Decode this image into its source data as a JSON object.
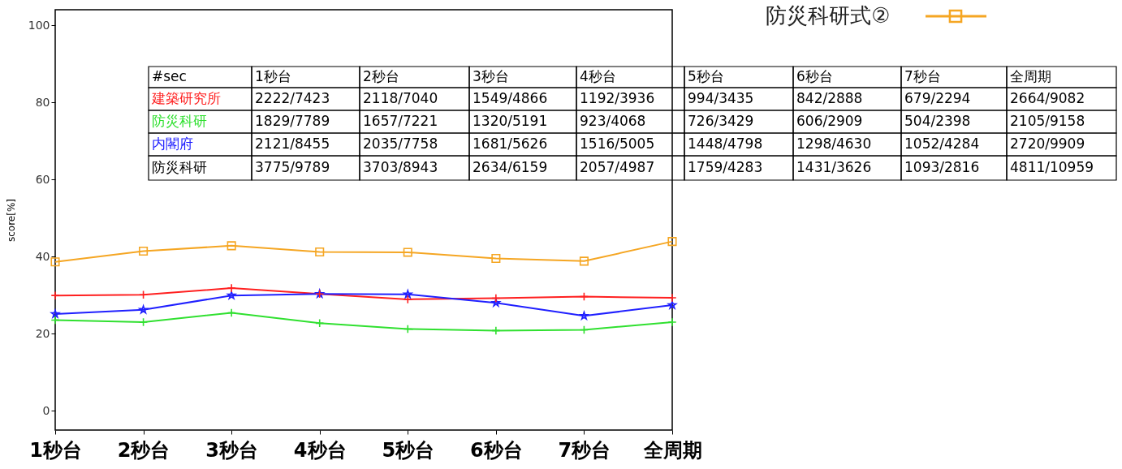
{
  "chart_data": {
    "type": "line",
    "ylabel": "score[%]",
    "categories": [
      "1秒台",
      "2秒台",
      "3秒台",
      "4秒台",
      "5秒台",
      "6秒台",
      "7秒台",
      "全周期"
    ],
    "ylim": [
      -5,
      104
    ],
    "yticks": [
      0,
      20,
      40,
      60,
      80,
      100
    ],
    "grid": false,
    "legend": "top right",
    "line_style": "solid",
    "annotations": [
      "#sec",
      "防災科研",
      "2222/7423",
      "2118/7040",
      "1549/4866",
      "1192/3936",
      "994/3435",
      "842/2888",
      "679/2294",
      "2664/9082",
      "1829/7789",
      "1657/7221",
      "1320/5191",
      "923/4068",
      "726/3429",
      "606/2909",
      "504/2398",
      "2105/9158",
      "2121/8455",
      "2035/7758",
      "1681/5626",
      "1516/5005",
      "1448/4798",
      "1298/4630",
      "1052/4284",
      "2720/9909",
      "3775/9789",
      "3703/8943",
      "2634/6159",
      "2057/4987",
      "1759/4283",
      "1431/3626",
      "1093/2816",
      "4811/10959"
    ],
    "series": [
      {
        "name": "建築研究所",
        "color": "#ff2020",
        "marker": "cross",
        "values": [
          29.9,
          30.1,
          31.8,
          30.3,
          28.9,
          29.2,
          29.6,
          29.3
        ]
      },
      {
        "name": "防災科研",
        "color": "#30e030",
        "marker": "cross",
        "values": [
          23.5,
          23.0,
          25.4,
          22.7,
          21.2,
          20.8,
          21.0,
          23.0
        ]
      },
      {
        "name": "内閣府",
        "color": "#2020ff",
        "marker": "star",
        "values": [
          25.1,
          26.2,
          29.9,
          30.3,
          30.2,
          28.0,
          24.6,
          27.4
        ]
      },
      {
        "name": "防災科研式②",
        "color": "#f5a623",
        "marker": "square",
        "values": [
          38.6,
          41.4,
          42.8,
          41.2,
          41.1,
          39.5,
          38.8,
          43.9
        ]
      }
    ]
  }
}
